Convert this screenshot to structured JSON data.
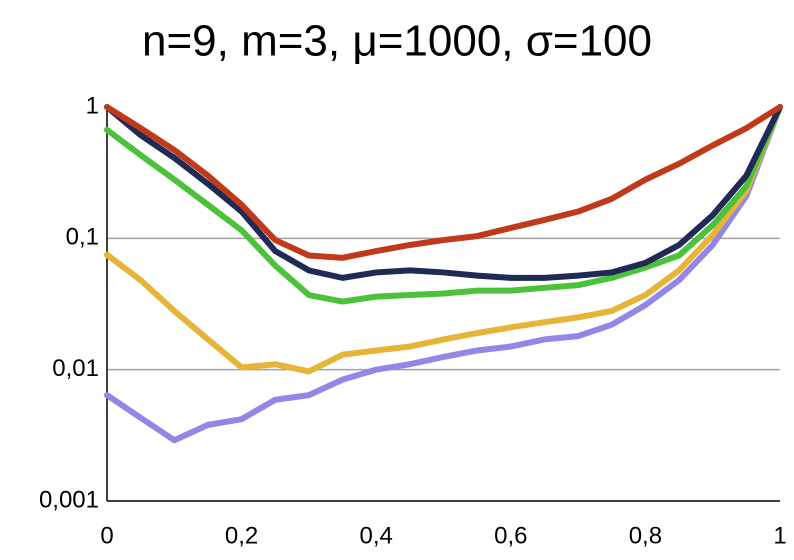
{
  "chart_data": {
    "type": "line",
    "title": "n=9, m=3, μ=1000, σ=100",
    "x": [
      0,
      0.05,
      0.1,
      0.15,
      0.2,
      0.25,
      0.3,
      0.35,
      0.4,
      0.45,
      0.5,
      0.55,
      0.6,
      0.65,
      0.7,
      0.75,
      0.8,
      0.85,
      0.9,
      0.95,
      1
    ],
    "xlim": [
      0,
      1
    ],
    "xticks": [
      0,
      {
        "value": 0.2,
        "label": "0,2"
      },
      {
        "value": 0.4,
        "label": "0,4"
      },
      {
        "value": 0.6,
        "label": "0,6"
      },
      {
        "value": 0.8,
        "label": "0,8"
      },
      1
    ],
    "ylim": [
      0.001,
      1
    ],
    "ylog": true,
    "yticks": [
      {
        "value": 0.001,
        "label": "0,001"
      },
      {
        "value": 0.01,
        "label": "0,01"
      },
      {
        "value": 0.1,
        "label": "0,1"
      },
      1
    ],
    "grid": true,
    "series": [
      {
        "color": "#c0391b",
        "values": [
          1,
          0.69,
          0.47,
          0.3,
          0.18,
          0.097,
          0.074,
          0.071,
          0.08,
          0.089,
          0.097,
          0.104,
          0.12,
          0.138,
          0.16,
          0.2,
          0.28,
          0.37,
          0.51,
          0.69,
          1
        ]
      },
      {
        "color": "#1f2a55",
        "values": [
          1,
          0.61,
          0.41,
          0.26,
          0.16,
          0.08,
          0.057,
          0.05,
          0.055,
          0.057,
          0.055,
          0.052,
          0.05,
          0.05,
          0.052,
          0.055,
          0.065,
          0.089,
          0.15,
          0.3,
          1
        ]
      },
      {
        "color": "#4cc13a",
        "values": [
          0.67,
          0.43,
          0.28,
          0.18,
          0.115,
          0.062,
          0.037,
          0.033,
          0.036,
          0.037,
          0.038,
          0.04,
          0.04,
          0.042,
          0.044,
          0.05,
          0.06,
          0.074,
          0.126,
          0.25,
          1
        ]
      },
      {
        "color": "#e6b537",
        "values": [
          0.075,
          0.048,
          0.028,
          0.017,
          0.0104,
          0.011,
          0.0097,
          0.013,
          0.014,
          0.015,
          0.017,
          0.019,
          0.021,
          0.023,
          0.025,
          0.028,
          0.037,
          0.057,
          0.106,
          0.23,
          1
        ]
      },
      {
        "color": "#9486e6",
        "values": [
          0.0064,
          0.0043,
          0.0029,
          0.0038,
          0.0042,
          0.0059,
          0.0064,
          0.0084,
          0.01,
          0.011,
          0.0125,
          0.014,
          0.015,
          0.017,
          0.018,
          0.022,
          0.031,
          0.048,
          0.089,
          0.21,
          1
        ]
      }
    ]
  }
}
